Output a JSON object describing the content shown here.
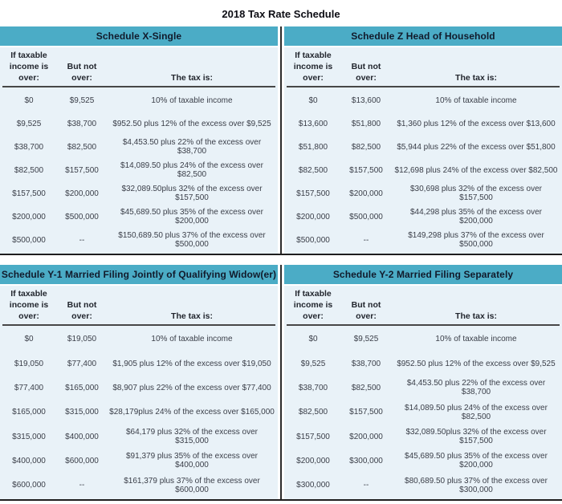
{
  "page": {
    "title": "2018 Tax Rate Schedule"
  },
  "column_headers": {
    "over": "If taxable\nincome is\nover:",
    "but_not_over": "But not\nover:",
    "tax_is": "The tax is:"
  },
  "colors": {
    "header_band": "#4BACC6",
    "table_background": "#E9F2F8",
    "border_line": "#1e1e1e"
  },
  "schedules": [
    {
      "title": "Schedule X-Single",
      "rows": [
        [
          "$0",
          "$9,525",
          "10% of taxable income"
        ],
        [
          "$9,525",
          "$38,700",
          "$952.50 plus 12% of the excess over $9,525"
        ],
        [
          "$38,700",
          "$82,500",
          "$4,453.50 plus 22% of the excess over $38,700"
        ],
        [
          "$82,500",
          "$157,500",
          "$14,089.50 plus 24% of the excess over $82,500"
        ],
        [
          "$157,500",
          "$200,000",
          "$32,089.50plus 32% of the excess over $157,500"
        ],
        [
          "$200,000",
          "$500,000",
          "$45,689.50 plus 35% of the excess over $200,000"
        ],
        [
          "$500,000",
          "--",
          "$150,689.50 plus 37% of the excess over $500,000"
        ]
      ]
    },
    {
      "title": "Schedule Z Head of Household",
      "rows": [
        [
          "$0",
          "$13,600",
          "10% of taxable income"
        ],
        [
          "$13,600",
          "$51,800",
          "$1,360 plus 12% of the excess over $13,600"
        ],
        [
          "$51,800",
          "$82,500",
          "$5,944 plus 22% of the excess over $51,800"
        ],
        [
          "$82,500",
          "$157,500",
          "$12,698 plus 24% of the excess over $82,500"
        ],
        [
          "$157,500",
          "$200,000",
          "$30,698 plus 32% of the excess over $157,500"
        ],
        [
          "$200,000",
          "$500,000",
          "$44,298 plus 35% of the excess over $200,000"
        ],
        [
          "$500,000",
          "--",
          "$149,298 plus 37% of the excess over $500,000"
        ]
      ]
    },
    {
      "title": "Schedule Y-1 Married Filing Jointly of Qualifying Widow(er)",
      "rows": [
        [
          "$0",
          "$19,050",
          "10% of taxable income"
        ],
        [
          "$19,050",
          "$77,400",
          "$1,905 plus 12% of the excess over $19,050"
        ],
        [
          "$77,400",
          "$165,000",
          "$8,907 plus 22% of the excess over $77,400"
        ],
        [
          "$165,000",
          "$315,000",
          "$28,179plus 24% of the excess over $165,000"
        ],
        [
          "$315,000",
          "$400,000",
          "$64,179 plus 32% of the excess over $315,000"
        ],
        [
          "$400,000",
          "$600,000",
          "$91,379 plus 35% of the excess over $400,000"
        ],
        [
          "$600,000",
          "--",
          "$161,379 plus 37% of the excess over $600,000"
        ]
      ]
    },
    {
      "title": "Schedule Y-2 Married Filing Separately",
      "rows": [
        [
          "$0",
          "$9,525",
          "10% of taxable income"
        ],
        [
          "$9,525",
          "$38,700",
          "$952.50 plus 12% of the excess over $9,525"
        ],
        [
          "$38,700",
          "$82,500",
          "$4,453.50 plus 22% of the excess over $38,700"
        ],
        [
          "$82,500",
          "$157,500",
          "$14,089.50 plus 24% of the excess over $82,500"
        ],
        [
          "$157,500",
          "$200,000",
          "$32,089.50plus 32% of the excess over $157,500"
        ],
        [
          "$200,000",
          "$300,000",
          "$45,689.50 plus 35% of the excess over $200,000"
        ],
        [
          "$300,000",
          "--",
          "$80,689.50 plus 37% of the excess over $300,000"
        ]
      ]
    }
  ]
}
